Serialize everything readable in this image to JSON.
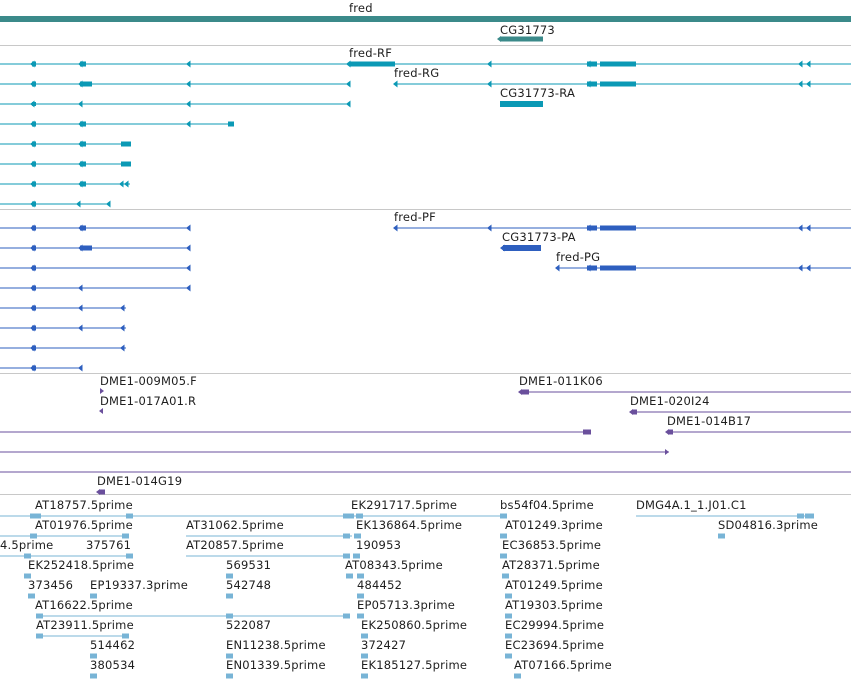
{
  "genes_track": {
    "labels": [
      "fred",
      "CG31773"
    ],
    "color": "#3b8a8a"
  },
  "mrna_track": {
    "labels": [
      "fred-RF",
      "fred-RG",
      "CG31773-RA"
    ],
    "color": "#0b99b5"
  },
  "protein_track": {
    "labels": [
      "fred-PF",
      "CG31773-PA",
      "fred-PG"
    ],
    "color": "#2e5fbf"
  },
  "clones_track": {
    "labels": [
      "DME1-009M05.F",
      "DME1-011K06",
      "DME1-017A01.R",
      "DME1-020I24",
      "DME1-014B17",
      "DME1-014G19"
    ],
    "color": "#6a4f9c"
  },
  "ests_track": {
    "labels": [
      "AT18757.5prime",
      "EK291717.5prime",
      "bs54f04.5prime",
      "DMG4A.1_1.J01.C1",
      "AT01976.5prime",
      "AT31062.5prime",
      "EK136864.5prime",
      "AT01249.3prime",
      "SD04816.3prime",
      "4.5prime",
      "375761",
      "AT20857.5prime",
      "190953",
      "EC36853.5prime",
      "EK252418.5prime",
      "569531",
      "AT08343.5prime",
      "AT28371.5prime",
      "373456",
      "EP19337.3prime",
      "542748",
      "484452",
      "AT01249.5prime",
      "AT16622.5prime",
      "EP05713.3prime",
      "AT19303.5prime",
      "AT23911.5prime",
      "522087",
      "EK250860.5prime",
      "EC29994.5prime",
      "514462",
      "EN11238.5prime",
      "372427",
      "EC23694.5prime",
      "380534",
      "EN01339.5prime",
      "EK185127.5prime",
      "AT07166.5prime"
    ],
    "color": "#78b4d6"
  },
  "separator_color": "#c8c8c8"
}
